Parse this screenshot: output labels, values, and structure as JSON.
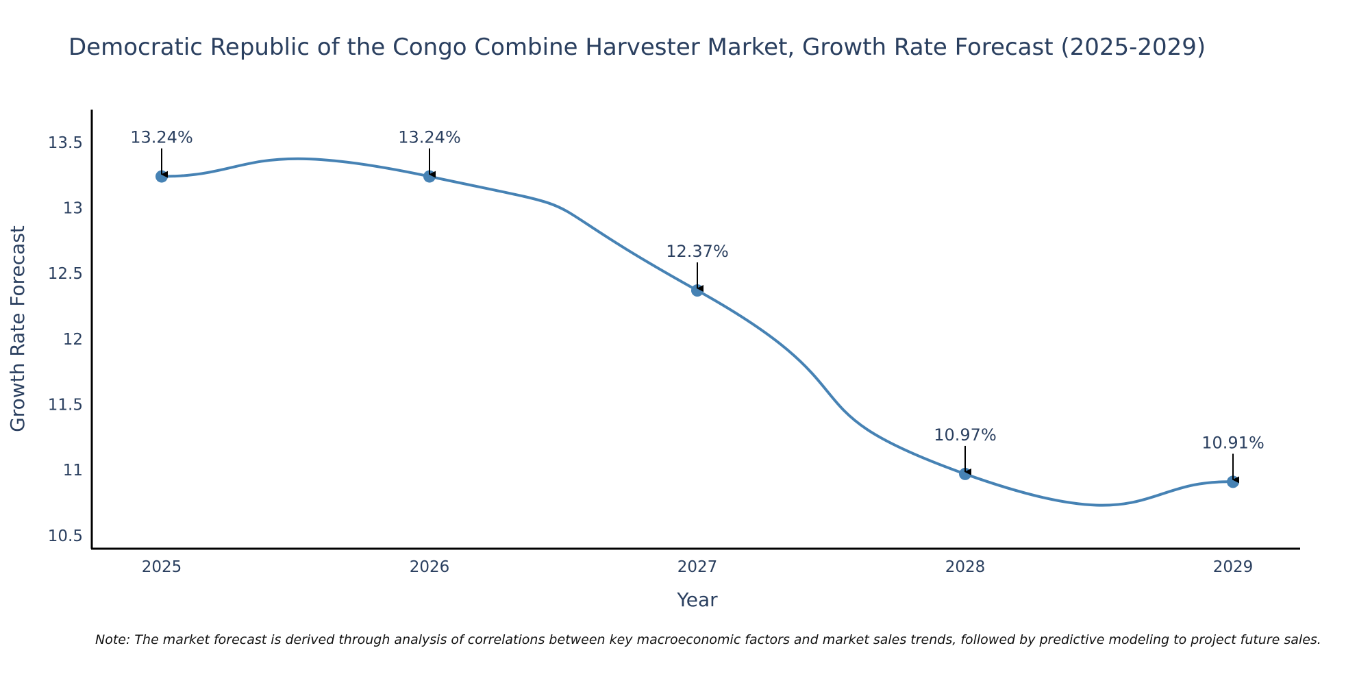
{
  "chart_data": {
    "type": "line",
    "title": "Democratic Republic of the Congo Combine Harvester Market, Growth Rate Forecast (2025-2029)",
    "xlabel": "Year",
    "ylabel": "Growth Rate Forecast",
    "categories": [
      "2025",
      "2026",
      "2027",
      "2028",
      "2029"
    ],
    "series": [
      {
        "name": "Growth Rate Forecast",
        "values": [
          13.24,
          13.24,
          12.37,
          10.97,
          10.91
        ]
      }
    ],
    "data_labels": [
      "13.24%",
      "13.24%",
      "12.37%",
      "10.97%",
      "10.91%"
    ],
    "yticks": [
      10.5,
      11,
      11.5,
      12,
      12.5,
      13,
      13.5
    ],
    "ytick_labels": [
      "10.5",
      "11",
      "11.5",
      "12",
      "12.5",
      "13",
      "13.5"
    ],
    "ylim": [
      10.4,
      13.75
    ],
    "grid": false,
    "line_color": "#4682b4",
    "note": "Note: The market forecast is derived through analysis of correlations between key macroeconomic factors and market sales trends, followed by predictive modeling to project future sales."
  }
}
